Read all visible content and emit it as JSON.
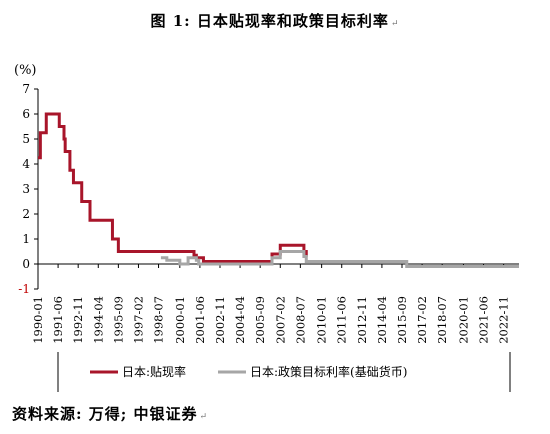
{
  "title": "图 1:  日本贴现率和政策目标利率",
  "source": "资料来源: 万得; 中银证券",
  "chart_data": {
    "type": "line",
    "title": "图 1:  日本贴现率和政策目标利率",
    "ylabel": "(%)",
    "xlabel": "",
    "ylim": [
      -1,
      7
    ],
    "yticks": [
      -1,
      0,
      1,
      2,
      3,
      4,
      5,
      6,
      7
    ],
    "xlim": [
      "1990-01",
      "2023-12"
    ],
    "xtick_labels": [
      "1990-01",
      "1991-06",
      "1992-11",
      "1994-04",
      "1995-09",
      "1997-02",
      "1998-07",
      "2000-01",
      "2001-06",
      "2002-11",
      "2004-04",
      "2005-09",
      "2007-02",
      "2008-07",
      "2010-01",
      "2011-06",
      "2012-11",
      "2014-04",
      "2015-09",
      "2017-02",
      "2018-07",
      "2020-01",
      "2021-06",
      "2022-11"
    ],
    "grid": false,
    "legend_position": "bottom",
    "series": [
      {
        "name": "日本:贴现率",
        "color": "#a8152a",
        "points": [
          [
            "1990-01",
            4.25
          ],
          [
            "1990-03",
            4.25
          ],
          [
            "1990-03",
            5.25
          ],
          [
            "1990-08",
            5.25
          ],
          [
            "1990-08",
            6.0
          ],
          [
            "1991-07",
            6.0
          ],
          [
            "1991-07",
            5.5
          ],
          [
            "1991-11",
            5.5
          ],
          [
            "1991-11",
            5.0
          ],
          [
            "1991-12",
            5.0
          ],
          [
            "1991-12",
            4.5
          ],
          [
            "1992-04",
            4.5
          ],
          [
            "1992-04",
            3.75
          ],
          [
            "1992-07",
            3.75
          ],
          [
            "1992-07",
            3.25
          ],
          [
            "1993-02",
            3.25
          ],
          [
            "1993-02",
            2.5
          ],
          [
            "1993-09",
            2.5
          ],
          [
            "1993-09",
            1.75
          ],
          [
            "1995-04",
            1.75
          ],
          [
            "1995-04",
            1.0
          ],
          [
            "1995-09",
            1.0
          ],
          [
            "1995-09",
            0.5
          ],
          [
            "2001-01",
            0.5
          ],
          [
            "2001-01",
            0.35
          ],
          [
            "2001-03",
            0.35
          ],
          [
            "2001-03",
            0.25
          ],
          [
            "2001-09",
            0.25
          ],
          [
            "2001-09",
            0.1
          ],
          [
            "2006-07",
            0.1
          ],
          [
            "2006-07",
            0.4
          ],
          [
            "2007-02",
            0.4
          ],
          [
            "2007-02",
            0.75
          ],
          [
            "2008-10",
            0.75
          ],
          [
            "2008-10",
            0.5
          ],
          [
            "2008-12",
            0.5
          ],
          [
            "2008-12",
            0.3
          ]
        ]
      },
      {
        "name": "日本:政策目标利率(基础货币)",
        "color": "#a6a6a6",
        "points": [
          [
            "1998-09",
            0.25
          ],
          [
            "1999-02",
            0.25
          ],
          [
            "1999-02",
            0.15
          ],
          [
            "2000-01",
            0.15
          ],
          [
            "2000-01",
            0.0
          ],
          [
            "2000-08",
            0.0
          ],
          [
            "2000-08",
            0.25
          ],
          [
            "2001-03",
            0.25
          ],
          [
            "2001-03",
            0.15
          ],
          [
            "2001-05",
            0.15
          ],
          [
            "2001-05",
            0.0
          ],
          [
            "2006-07",
            0.0
          ],
          [
            "2006-07",
            0.25
          ],
          [
            "2007-02",
            0.25
          ],
          [
            "2007-02",
            0.5
          ],
          [
            "2008-10",
            0.5
          ],
          [
            "2008-10",
            0.3
          ],
          [
            "2008-12",
            0.3
          ],
          [
            "2008-12",
            0.1
          ],
          [
            "2016-01",
            0.1
          ],
          [
            "2016-01",
            -0.1
          ],
          [
            "2023-12",
            -0.1
          ]
        ]
      }
    ]
  }
}
